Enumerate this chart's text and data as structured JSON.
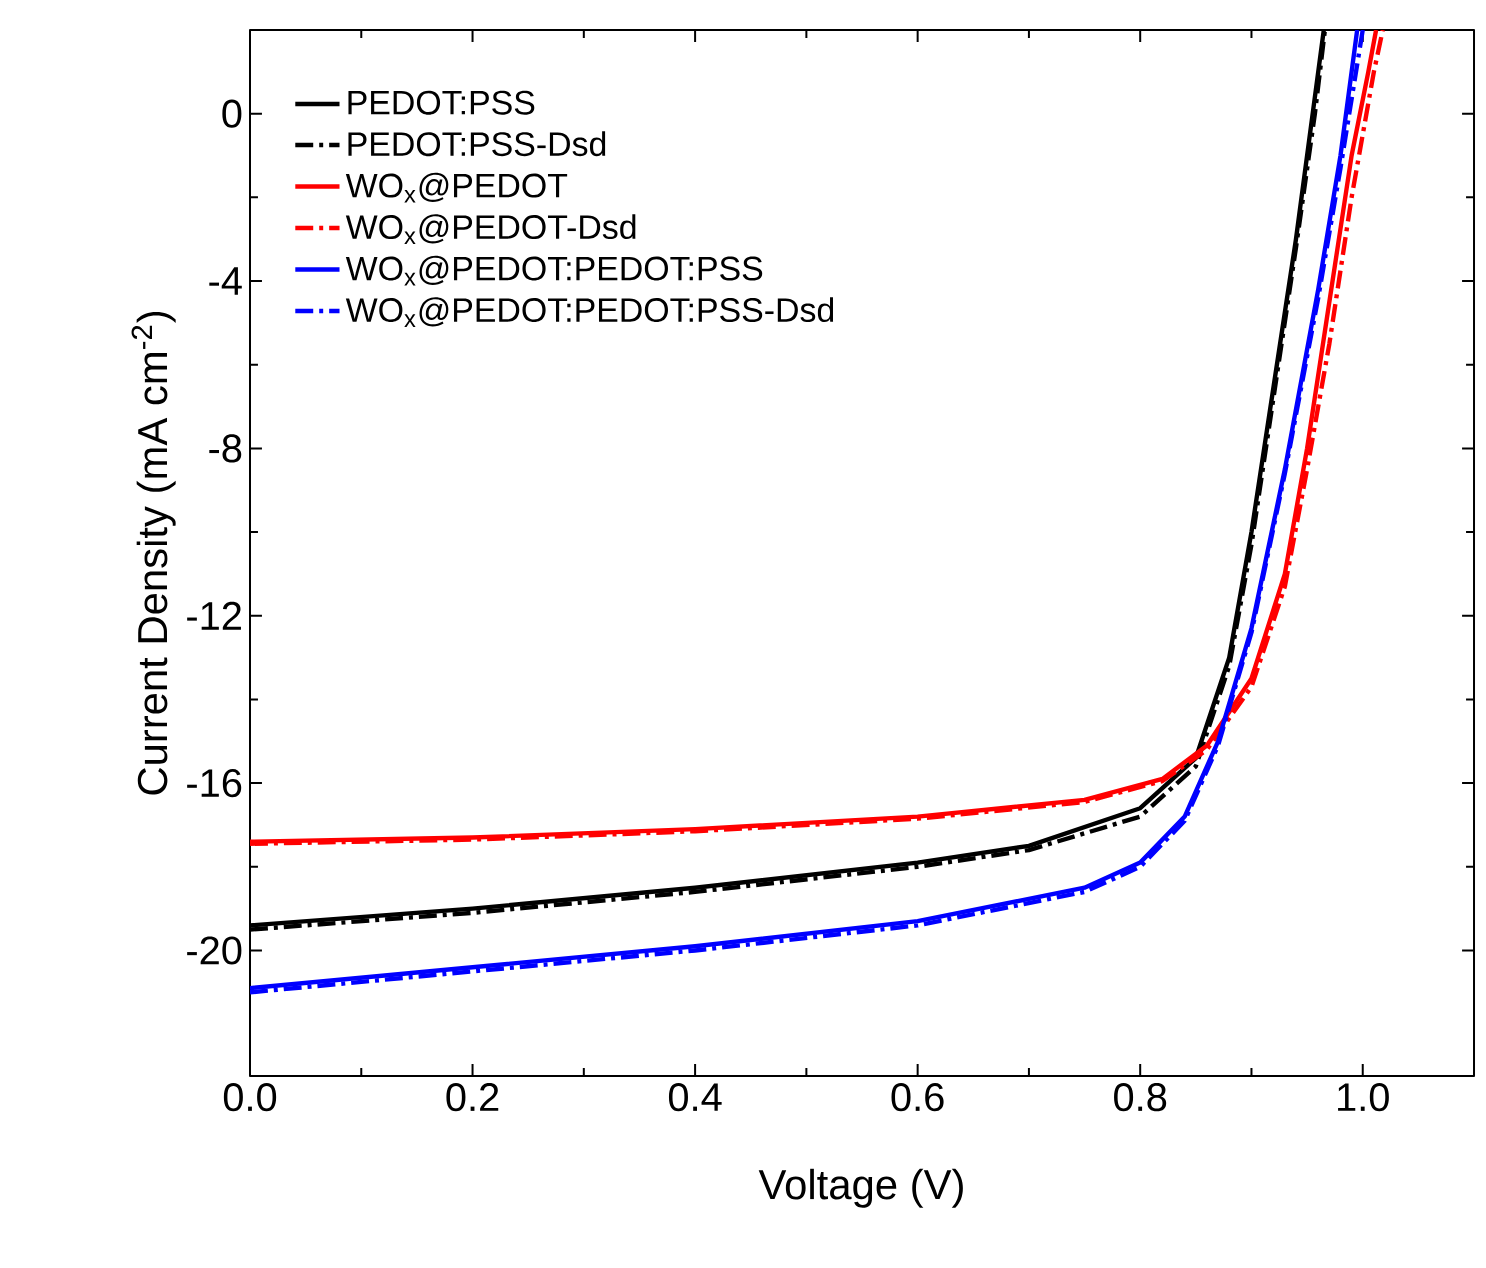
{
  "chart_data": {
    "type": "line",
    "xlabel": "Voltage (V)",
    "ylabel": "Current Density (mA cm$^{-2}$)",
    "xlim": [
      0,
      1.1
    ],
    "ylim": [
      -23,
      2
    ],
    "xticks": [
      {
        "value": 0,
        "label": "0.0"
      },
      0.2,
      0.4,
      0.6,
      0.8,
      {
        "value": 1,
        "label": "1.0"
      }
    ],
    "yticks": [
      -20,
      -16,
      -12,
      -8,
      -4,
      0
    ],
    "legend": "top left",
    "marker": "none",
    "series": [
      {
        "name": "PEDOT:PSS",
        "color": "#000000",
        "line_style": "solid",
        "x": [
          0,
          0.2,
          0.4,
          0.6,
          0.7,
          0.8,
          0.85,
          0.88,
          0.9,
          0.92,
          0.94,
          0.955,
          0.965
        ],
        "values": [
          -19.4,
          -19.0,
          -18.5,
          -17.9,
          -17.5,
          -16.6,
          -15.4,
          -13,
          -10,
          -6.5,
          -3,
          0,
          2
        ]
      },
      {
        "name": "PEDOT:PSS-Dsd",
        "color": "#000000",
        "line_style": "dashed",
        "x": [
          0,
          0.2,
          0.4,
          0.6,
          0.7,
          0.8,
          0.85,
          0.88,
          0.9,
          0.94,
          0.957,
          0.966
        ],
        "values": [
          -19.5,
          -19.1,
          -18.6,
          -18.0,
          -17.6,
          -16.8,
          -15.6,
          -13.2,
          -10.3,
          -3.2,
          0,
          2
        ]
      },
      {
        "name": "WO$_{x}$@PEDOT",
        "color": "#ff0000",
        "line_style": "solid",
        "x": [
          0,
          0.2,
          0.4,
          0.6,
          0.75,
          0.82,
          0.86,
          0.9,
          0.93,
          0.95,
          0.97,
          0.99,
          1.005,
          1.012
        ],
        "values": [
          -17.4,
          -17.3,
          -17.1,
          -16.8,
          -16.4,
          -15.9,
          -15.1,
          -13.5,
          -11,
          -8,
          -4.5,
          -1,
          1,
          2
        ]
      },
      {
        "name": "WO$_{x}$@PEDOT-Dsd",
        "color": "#ff0000",
        "line_style": "dashed",
        "x": [
          0,
          0.2,
          0.4,
          0.6,
          0.75,
          0.82,
          0.86,
          0.9,
          0.93,
          0.95,
          0.97,
          0.99,
          1.01,
          1.018
        ],
        "values": [
          -17.45,
          -17.35,
          -17.15,
          -16.85,
          -16.45,
          -15.95,
          -15.2,
          -13.7,
          -11.3,
          -8.5,
          -5.5,
          -2,
          1,
          2
        ]
      },
      {
        "name": "WO$_{x}$@PEDOT:PEDOT:PSS",
        "color": "#0000ff",
        "line_style": "solid",
        "x": [
          0,
          0.2,
          0.4,
          0.6,
          0.75,
          0.8,
          0.84,
          0.87,
          0.9,
          0.93,
          0.96,
          0.98,
          0.995
        ],
        "values": [
          -20.9,
          -20.4,
          -19.9,
          -19.3,
          -18.5,
          -17.9,
          -16.8,
          -15,
          -12.3,
          -8.5,
          -4.2,
          -1,
          2
        ]
      },
      {
        "name": "WO$_{x}$@PEDOT:PEDOT:PSS-Dsd",
        "color": "#0000ff",
        "line_style": "dashed",
        "x": [
          0,
          0.2,
          0.4,
          0.6,
          0.75,
          0.8,
          0.84,
          0.87,
          0.9,
          0.93,
          0.96,
          0.98,
          1.0
        ],
        "values": [
          -21.0,
          -20.5,
          -20.0,
          -19.4,
          -18.6,
          -18.0,
          -16.9,
          -15.1,
          -12.4,
          -8.6,
          -4.4,
          -1.3,
          2
        ]
      }
    ]
  }
}
